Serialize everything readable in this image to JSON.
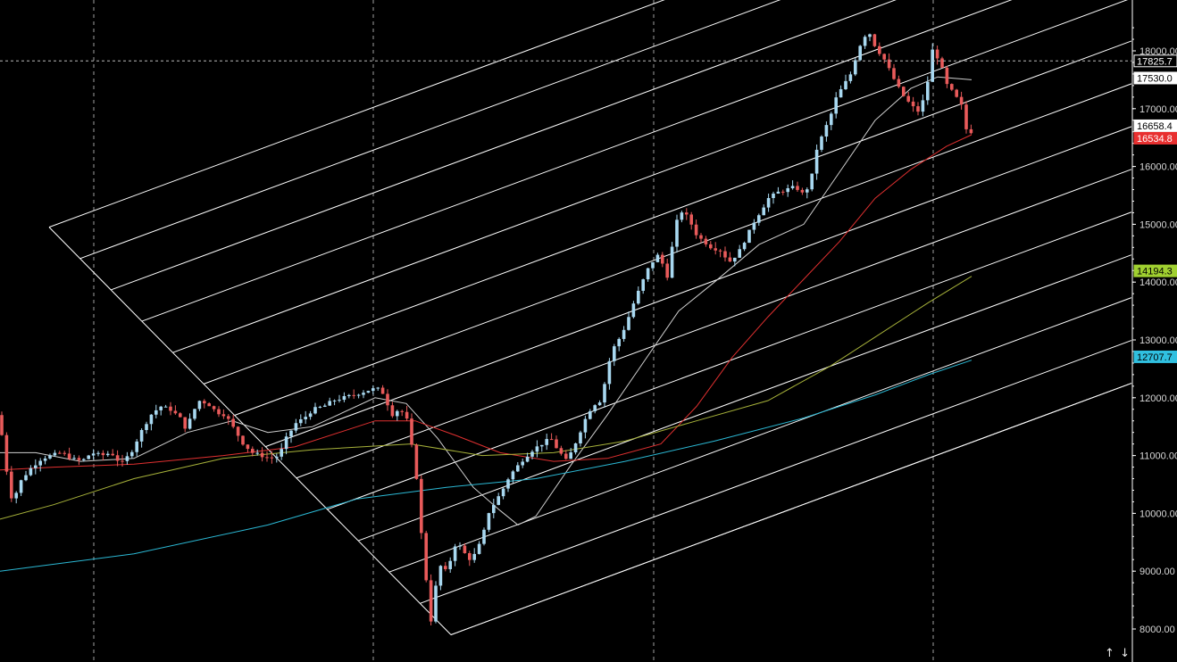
{
  "chart_data": {
    "type": "candlestick",
    "ylim": [
      7800,
      18900
    ],
    "yticks": [
      8000,
      9000,
      10000,
      11000,
      12000,
      13000,
      14000,
      15000,
      16000,
      17000,
      18000
    ],
    "ytick_labels": [
      "8000.00",
      "9000.00",
      "10000.00",
      "11000.00",
      "12000.00",
      "13000.00",
      "14000.00",
      "15000.00",
      "16000.00",
      "17000.00",
      "18000.00"
    ],
    "grid": {
      "vertical_dashed": true,
      "horizontal": false
    },
    "colors": {
      "background": "#000000",
      "up_candle": "#a8d8f0",
      "down_candle": "#e85a5a",
      "axis": "#ffffff",
      "text": "#d8d8d8",
      "gann_lines": "#ffffff",
      "crosshair": "#bbbbbb"
    },
    "candle_anchors": [
      [
        0,
        11700
      ],
      [
        7,
        11400
      ],
      [
        14,
        10600
      ],
      [
        20,
        10150
      ],
      [
        26,
        10500
      ],
      [
        33,
        10650
      ],
      [
        41,
        10800
      ],
      [
        52,
        10950
      ],
      [
        63,
        11000
      ],
      [
        74,
        11050
      ],
      [
        85,
        10950
      ],
      [
        97,
        10900
      ],
      [
        108,
        11050
      ],
      [
        119,
        11000
      ],
      [
        130,
        11050
      ],
      [
        141,
        10850
      ],
      [
        152,
        11050
      ],
      [
        163,
        11400
      ],
      [
        174,
        11700
      ],
      [
        185,
        11850
      ],
      [
        196,
        11800
      ],
      [
        207,
        11650
      ],
      [
        214,
        11450
      ],
      [
        220,
        11700
      ],
      [
        228,
        11950
      ],
      [
        238,
        11900
      ],
      [
        248,
        11750
      ],
      [
        258,
        11700
      ],
      [
        268,
        11450
      ],
      [
        278,
        11200
      ],
      [
        288,
        11050
      ],
      [
        298,
        11000
      ],
      [
        308,
        10950
      ],
      [
        318,
        11000
      ],
      [
        326,
        11300
      ],
      [
        336,
        11550
      ],
      [
        346,
        11650
      ],
      [
        356,
        11800
      ],
      [
        368,
        11850
      ],
      [
        378,
        11950
      ],
      [
        390,
        12000
      ],
      [
        402,
        12050
      ],
      [
        412,
        12100
      ],
      [
        422,
        12150
      ],
      [
        432,
        12150
      ],
      [
        438,
        11950
      ],
      [
        444,
        11700
      ],
      [
        452,
        11800
      ],
      [
        460,
        11700
      ],
      [
        466,
        11200
      ],
      [
        472,
        10600
      ],
      [
        478,
        9500
      ],
      [
        483,
        8800
      ],
      [
        488,
        8150
      ],
      [
        493,
        8700
      ],
      [
        498,
        9100
      ],
      [
        504,
        9000
      ],
      [
        510,
        9200
      ],
      [
        516,
        9500
      ],
      [
        522,
        9400
      ],
      [
        530,
        9200
      ],
      [
        538,
        9300
      ],
      [
        546,
        9600
      ],
      [
        552,
        10000
      ],
      [
        560,
        10200
      ],
      [
        568,
        10400
      ],
      [
        576,
        10650
      ],
      [
        584,
        10800
      ],
      [
        592,
        10950
      ],
      [
        602,
        11100
      ],
      [
        612,
        11200
      ],
      [
        622,
        11300
      ],
      [
        630,
        11100
      ],
      [
        640,
        10900
      ],
      [
        648,
        11150
      ],
      [
        656,
        11450
      ],
      [
        664,
        11750
      ],
      [
        672,
        11900
      ],
      [
        678,
        11950
      ],
      [
        684,
        12350
      ],
      [
        690,
        12800
      ],
      [
        698,
        13000
      ],
      [
        706,
        13250
      ],
      [
        714,
        13600
      ],
      [
        722,
        13900
      ],
      [
        730,
        14200
      ],
      [
        736,
        14350
      ],
      [
        744,
        14500
      ],
      [
        752,
        14050
      ],
      [
        758,
        14600
      ],
      [
        764,
        15100
      ],
      [
        770,
        15250
      ],
      [
        778,
        15050
      ],
      [
        786,
        14800
      ],
      [
        794,
        14700
      ],
      [
        802,
        14600
      ],
      [
        812,
        14550
      ],
      [
        822,
        14350
      ],
      [
        832,
        14500
      ],
      [
        842,
        14800
      ],
      [
        850,
        15050
      ],
      [
        858,
        15250
      ],
      [
        866,
        15450
      ],
      [
        876,
        15550
      ],
      [
        886,
        15600
      ],
      [
        896,
        15650
      ],
      [
        906,
        15500
      ],
      [
        914,
        15800
      ],
      [
        920,
        16300
      ],
      [
        928,
        16600
      ],
      [
        936,
        16900
      ],
      [
        942,
        17200
      ],
      [
        950,
        17400
      ],
      [
        958,
        17600
      ],
      [
        964,
        17900
      ],
      [
        972,
        18250
      ],
      [
        980,
        18300
      ],
      [
        986,
        18050
      ],
      [
        994,
        17900
      ],
      [
        1002,
        17650
      ],
      [
        1010,
        17400
      ],
      [
        1018,
        17200
      ],
      [
        1026,
        17050
      ],
      [
        1034,
        16950
      ],
      [
        1042,
        17250
      ],
      [
        1050,
        18050
      ],
      [
        1058,
        17800
      ],
      [
        1066,
        17400
      ],
      [
        1074,
        17250
      ],
      [
        1082,
        17050
      ],
      [
        1088,
        16600
      ]
    ],
    "moving_averages": [
      {
        "color": "#d0d0d0",
        "points": [
          [
            0,
            11050
          ],
          [
            40,
            11050
          ],
          [
            90,
            10900
          ],
          [
            150,
            10950
          ],
          [
            210,
            11400
          ],
          [
            260,
            11600
          ],
          [
            300,
            11400
          ],
          [
            350,
            11500
          ],
          [
            420,
            12000
          ],
          [
            455,
            11900
          ],
          [
            490,
            11300
          ],
          [
            530,
            10450
          ],
          [
            560,
            10050
          ],
          [
            580,
            9800
          ],
          [
            600,
            9950
          ],
          [
            640,
            10850
          ],
          [
            680,
            11700
          ],
          [
            720,
            12600
          ],
          [
            760,
            13500
          ],
          [
            800,
            14000
          ],
          [
            850,
            14650
          ],
          [
            900,
            15000
          ],
          [
            940,
            15900
          ],
          [
            980,
            16800
          ],
          [
            1020,
            17350
          ],
          [
            1050,
            17550
          ],
          [
            1088,
            17500
          ]
        ]
      },
      {
        "color": "#e03030",
        "points": [
          [
            0,
            10750
          ],
          [
            60,
            10800
          ],
          [
            150,
            10850
          ],
          [
            250,
            11000
          ],
          [
            330,
            11150
          ],
          [
            420,
            11600
          ],
          [
            465,
            11600
          ],
          [
            510,
            11350
          ],
          [
            560,
            11050
          ],
          [
            620,
            10900
          ],
          [
            680,
            10950
          ],
          [
            740,
            11200
          ],
          [
            780,
            11850
          ],
          [
            820,
            12700
          ],
          [
            860,
            13400
          ],
          [
            900,
            14050
          ],
          [
            940,
            14700
          ],
          [
            980,
            15450
          ],
          [
            1020,
            15950
          ],
          [
            1060,
            16350
          ],
          [
            1088,
            16550
          ]
        ]
      },
      {
        "color": "#a7b23a",
        "points": [
          [
            0,
            9900
          ],
          [
            60,
            10150
          ],
          [
            150,
            10600
          ],
          [
            250,
            10950
          ],
          [
            350,
            11100
          ],
          [
            460,
            11200
          ],
          [
            540,
            11000
          ],
          [
            620,
            11050
          ],
          [
            700,
            11250
          ],
          [
            780,
            11600
          ],
          [
            860,
            11950
          ],
          [
            930,
            12550
          ],
          [
            980,
            13050
          ],
          [
            1040,
            13650
          ],
          [
            1088,
            14100
          ]
        ]
      },
      {
        "color": "#2bb8d4",
        "points": [
          [
            0,
            9000
          ],
          [
            150,
            9300
          ],
          [
            300,
            9800
          ],
          [
            400,
            10250
          ],
          [
            500,
            10450
          ],
          [
            600,
            10600
          ],
          [
            700,
            10900
          ],
          [
            800,
            11250
          ],
          [
            900,
            11650
          ],
          [
            980,
            12050
          ],
          [
            1040,
            12400
          ],
          [
            1088,
            12650
          ]
        ]
      }
    ],
    "price_tags": [
      {
        "label": "17825.7",
        "value": 17825.7,
        "bg": "#000000",
        "fg": "#ffffff",
        "border": "#ffffff"
      },
      {
        "label": "17530.0",
        "value": 17530.0,
        "bg": "#ffffff",
        "fg": "#000000",
        "border": "#ffffff"
      },
      {
        "label": "16658.4",
        "value": 16658.4,
        "bg": "#ffffff",
        "fg": "#000000",
        "border": "#ffffff"
      },
      {
        "label": "16534.8",
        "value": 16534.8,
        "bg": "#e83030",
        "fg": "#ffffff",
        "border": "#e83030"
      },
      {
        "label": "14194.3",
        "value": 14194.3,
        "bg": "#a0d030",
        "fg": "#000000",
        "border": "#a0d030"
      },
      {
        "label": "12707.7",
        "value": 12707.7,
        "bg": "#30c0e0",
        "fg": "#000000",
        "border": "#30c0e0"
      }
    ],
    "crosshair_value": 17825.7,
    "gann_fan": {
      "apex": [
        55,
        14950
      ],
      "bottom_right": [
        505,
        7900
      ],
      "fan_slope_per_px": 5.2,
      "fan_count": 14
    }
  },
  "ui": {
    "scroll_up_icon": "↑",
    "scroll_down_icon": "↓"
  }
}
